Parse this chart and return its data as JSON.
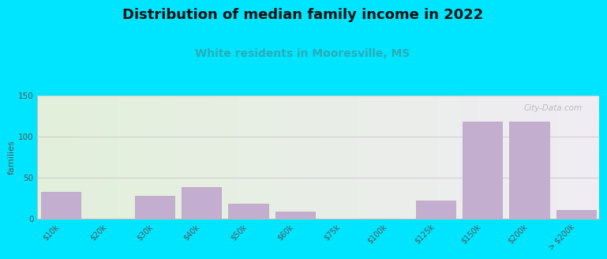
{
  "title": "Distribution of median family income in 2022",
  "subtitle": "White residents in Mooresville, MS",
  "ylabel": "families",
  "categories": [
    "$10k",
    "$20k",
    "$30k",
    "$40k",
    "$50k",
    "$60k",
    "$75k",
    "$100k",
    "$125k",
    "$150k",
    "$200k",
    "> $200k"
  ],
  "values": [
    32,
    0,
    28,
    38,
    18,
    8,
    0,
    0,
    22,
    118,
    118,
    10
  ],
  "bar_color": "#c4aed0",
  "bar_edge_color": "#b89fc0",
  "ylim": [
    0,
    150
  ],
  "yticks": [
    0,
    50,
    100,
    150
  ],
  "background_outer": "#00e5ff",
  "background_inner_left": "#e2f0da",
  "background_inner_right": "#f0ecf4",
  "grid_color": "#cccccc",
  "title_fontsize": 13,
  "subtitle_fontsize": 10,
  "subtitle_color": "#2aacb8",
  "watermark": "City-Data.com",
  "ylabel_fontsize": 8,
  "tick_label_fontsize": 7
}
